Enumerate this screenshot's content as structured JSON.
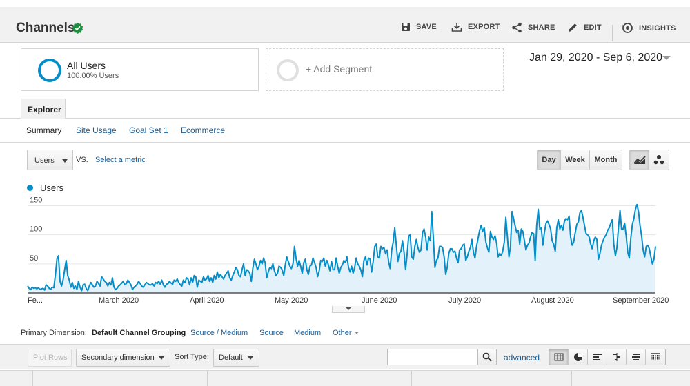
{
  "header": {
    "title": "Channels",
    "actions": {
      "save": "SAVE",
      "export": "EXPORT",
      "share": "SHARE",
      "edit": "EDIT",
      "insights": "INSIGHTS"
    }
  },
  "segments": {
    "active": {
      "name": "All Users",
      "percent": "100.00% Users"
    },
    "add_label": "+ Add Segment"
  },
  "date_range": "Jan 29, 2020 - Sep 6, 2020",
  "tabs": {
    "explorer": "Explorer"
  },
  "subtabs": [
    "Summary",
    "Site Usage",
    "Goal Set 1",
    "Ecommerce"
  ],
  "metric_controls": {
    "metric": "Users",
    "vs": "VS.",
    "select_metric": "Select a metric",
    "periods": [
      "Day",
      "Week",
      "Month"
    ],
    "active_period": "Day"
  },
  "colors": {
    "series": "#058dc7",
    "area_fill": "#e3f1fa",
    "link": "#1a5e95",
    "verified": "#1e8e3e"
  },
  "chart_data": {
    "type": "area",
    "series": [
      {
        "name": "Users",
        "values": [
          12,
          8,
          6,
          10,
          8,
          9,
          7,
          9,
          6,
          7,
          8,
          5,
          14,
          12,
          8,
          6,
          10,
          9,
          30,
          58,
          64,
          20,
          12,
          22,
          40,
          56,
          30,
          22,
          10,
          18,
          8,
          12,
          6,
          20,
          10,
          4,
          14,
          15,
          8,
          4,
          12,
          18,
          14,
          10,
          12,
          20,
          16,
          12,
          28,
          24,
          20,
          18,
          12,
          18,
          14,
          26,
          10,
          6,
          8,
          12,
          14,
          17,
          20,
          14,
          16,
          22,
          18,
          14,
          6,
          10,
          12,
          15,
          20,
          16,
          12,
          10,
          14,
          18,
          16,
          14,
          14,
          16,
          12,
          18,
          16,
          20,
          15,
          22,
          14,
          10,
          15,
          16,
          20,
          17,
          15,
          22,
          20,
          24,
          18,
          14,
          12,
          22,
          18,
          26,
          24,
          14,
          26,
          18,
          30,
          28,
          10,
          22,
          20,
          18,
          28,
          22,
          24,
          30,
          20,
          26,
          18,
          30,
          24,
          36,
          26,
          32,
          28,
          24,
          30,
          34,
          38,
          26,
          22,
          30,
          36,
          44,
          40,
          30,
          28,
          40,
          50,
          30,
          40,
          38,
          34,
          20,
          42,
          58,
          50,
          40,
          46,
          56,
          50,
          60,
          52,
          26,
          36,
          44,
          42,
          50,
          38,
          30,
          34,
          46,
          44,
          40,
          30,
          48,
          62,
          54,
          46,
          42,
          50,
          80,
          60,
          46,
          56,
          46,
          34,
          52,
          58,
          40,
          32,
          46,
          48,
          60,
          52,
          44,
          28,
          38,
          56,
          54,
          60,
          46,
          56,
          48,
          38,
          54,
          40,
          40,
          60,
          46,
          34,
          44,
          48,
          56,
          52,
          62,
          44,
          36,
          46,
          34,
          44,
          60,
          50,
          46,
          40,
          28,
          56,
          62,
          48,
          60,
          58,
          36,
          54,
          80,
          84,
          62,
          60,
          80,
          76,
          78,
          68,
          74,
          54,
          42,
          74,
          88,
          112,
          82,
          54,
          68,
          72,
          90,
          70,
          40,
          66,
          98,
          100,
          62,
          58,
          80,
          92,
          78,
          70,
          74,
          104,
          110,
          96,
          74,
          96,
          90,
          140,
          96,
          44,
          56,
          60,
          80,
          80,
          78,
          62,
          32,
          44,
          68,
          76,
          76,
          70,
          72,
          60,
          52,
          74,
          76,
          82,
          84,
          56,
          62,
          72,
          78,
          92,
          70,
          60,
          80,
          94,
          108,
          116,
          106,
          112,
          88,
          78,
          70,
          106,
          96,
          92,
          98,
          86,
          62,
          68,
          64,
          72,
          88,
          130,
          96,
          62,
          80,
          140,
          128,
          116,
          104,
          108,
          84,
          110,
          106,
          90,
          74,
          82,
          86,
          96,
          104,
          102,
          56,
          116,
          144,
          110,
          112,
          82,
          104,
          120,
          124,
          118,
          110,
          90,
          84,
          72,
          112,
          126,
          110,
          116,
          108,
          124,
          128,
          126,
          132,
          96,
          82,
          88,
          104,
          118,
          122,
          138,
          142,
          130,
          116,
          102,
          100,
          96,
          84,
          76,
          90,
          96,
          92,
          58,
          68,
          82,
          90,
          96,
          100,
          108,
          112,
          120,
          126,
          84,
          64,
          78,
          112,
          142,
          110,
          110,
          120,
          98,
          70,
          60,
          94,
          118,
          128,
          144,
          152,
          140,
          116,
          98,
          74,
          62,
          80,
          82,
          76,
          62,
          50,
          58,
          80
        ],
        "note_unused": ""
      }
    ],
    "x_tick_labels": [
      "Fe...",
      "March 2020",
      "April 2020",
      "May 2020",
      "June 2020",
      "July 2020",
      "August 2020",
      "September 2020"
    ],
    "y_tick_labels": [
      "150",
      "100",
      "50"
    ],
    "ylim": [
      0,
      150
    ],
    "grid": true,
    "legend": "top-left"
  },
  "table_controls": {
    "primary_dimension_label": "Primary Dimension:",
    "dimensions": [
      "Default Channel Grouping",
      "Source / Medium",
      "Source",
      "Medium",
      "Other"
    ],
    "plot_rows": "Plot Rows",
    "secondary_dimension": "Secondary dimension",
    "sort_type_label": "Sort Type:",
    "sort_type": "Default",
    "advanced": "advanced"
  }
}
